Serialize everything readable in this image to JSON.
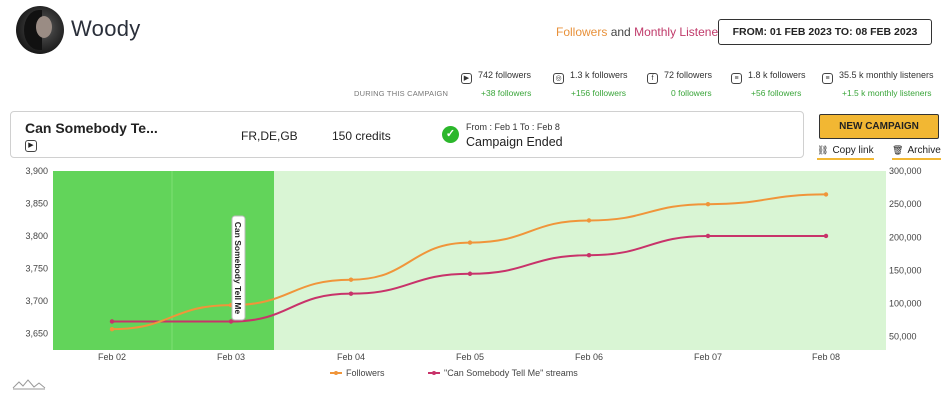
{
  "artist": {
    "name": "Woody"
  },
  "header": {
    "legend_followers": "Followers",
    "legend_and": "and",
    "legend_monthly": "Monthly Listeners",
    "date_range": "FROM: 01 FEB 2023 TO: 08 FEB 2023"
  },
  "stats": {
    "during_label": "DURING THIS CAMPAIGN",
    "items": [
      {
        "icon": "youtube-icon",
        "glyph": "▶",
        "value": "742 followers",
        "delta": "+38 followers"
      },
      {
        "icon": "instagram-icon",
        "glyph": "◎",
        "value": "1.3 k followers",
        "delta": "+156 followers"
      },
      {
        "icon": "facebook-icon",
        "glyph": "f",
        "value": "72 followers",
        "delta": "0 followers"
      },
      {
        "icon": "spotify-icon",
        "glyph": "≡",
        "value": "1.8 k followers",
        "delta": "+56 followers"
      },
      {
        "icon": "spotify-listeners-icon",
        "glyph": "≡",
        "value": "35.5 k monthly listeners",
        "delta": "+1.5 k monthly listeners"
      }
    ]
  },
  "campaign": {
    "title": "Can Somebody Te...",
    "countries": "FR,DE,GB",
    "credits": "150 credits",
    "dates": "From : Feb 1 To : Feb 8",
    "status": "Campaign Ended"
  },
  "actions": {
    "new_campaign": "NEW CAMPAIGN",
    "copy_link": "Copy link",
    "archive": "Archive"
  },
  "colors": {
    "followers": "#f0953a",
    "streams": "#c8336a",
    "campaign_band": "#62d45a",
    "period_band": "#d9f5d4",
    "accent": "#f2b733"
  },
  "chart_data": {
    "type": "line",
    "categories": [
      "Feb 02",
      "Feb 03",
      "Feb 04",
      "Feb 05",
      "Feb 06",
      "Feb 07",
      "Feb 08"
    ],
    "y_left": {
      "range": [
        3625,
        3900
      ],
      "ticks": [
        3650,
        3700,
        3750,
        3800,
        3850,
        3900
      ],
      "tick_labels": [
        "3,650",
        "3,700",
        "3,750",
        "3,800",
        "3,850",
        "3,900"
      ]
    },
    "y_right": {
      "range": [
        30000,
        300000
      ],
      "ticks": [
        50000,
        100000,
        150000,
        200000,
        250000,
        300000
      ],
      "tick_labels": [
        "50,000",
        "100,000",
        "150,000",
        "200,000",
        "250,000",
        "300,000"
      ]
    },
    "series": [
      {
        "name": "Followers",
        "axis": "left",
        "values": [
          3657,
          3694,
          3733,
          3790,
          3824,
          3849,
          3864
        ]
      },
      {
        "name": "\"Can Somebody Tell Me\" streams",
        "axis": "right",
        "values": [
          73000,
          73000,
          115000,
          145000,
          173000,
          202000,
          202000
        ]
      }
    ],
    "annotation": "Can Somebody Tell Me",
    "legend_position": "bottom"
  }
}
